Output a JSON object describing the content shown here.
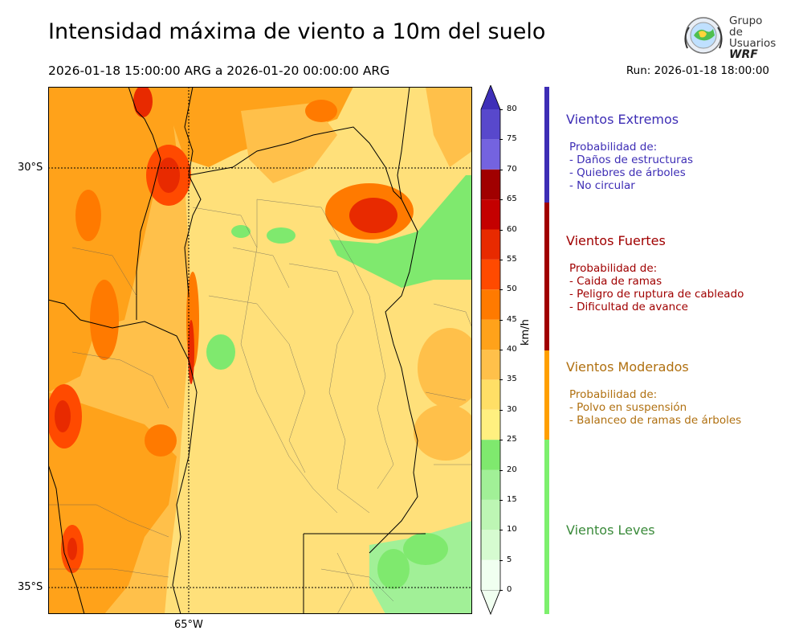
{
  "title": "Intensidad máxima de viento a 10m del suelo",
  "period": "2026-01-18 15:00:00 ARG  a  2026-01-20 00:00:00 ARG",
  "run": "Run: 2026-01-18 18:00:00",
  "logo": {
    "line1": "Grupo de",
    "line2": "Usuarios",
    "line3": "WRF",
    "icon": "globe-emblem-icon"
  },
  "map": {
    "lat_labels": [
      "30°S",
      "35°S"
    ],
    "lon_labels": [
      "65°W"
    ]
  },
  "colorbar": {
    "unit": "km/h",
    "ticks": [
      "0",
      "5",
      "10",
      "15",
      "20",
      "25",
      "30",
      "35",
      "40",
      "45",
      "50",
      "55",
      "60",
      "65",
      "70",
      "75",
      "80"
    ],
    "colors": [
      "#f0fff0",
      "#d6fbd0",
      "#bdf6b4",
      "#a1f097",
      "#7fe96e",
      "#fff080",
      "#ffdf66",
      "#ffc04a",
      "#ffa21a",
      "#ff7a00",
      "#ff4a00",
      "#e82a00",
      "#c40000",
      "#a00000",
      "#7463e0",
      "#5848cc",
      "#3e2fb8"
    ]
  },
  "categories": [
    {
      "title": "Vientos Extremos",
      "color": "#3d2db5",
      "subtitle": "Probabilidad de:",
      "items": [
        "- Daños de estructuras",
        "- Quiebres de árboles",
        "- No circular"
      ]
    },
    {
      "title": "Vientos Fuertes",
      "color": "#a00000",
      "subtitle": "Probabilidad de:",
      "items": [
        "- Caida de ramas",
        "- Peligro de ruptura de cableado",
        "- Dificultad de avance"
      ]
    },
    {
      "title": "Vientos Moderados",
      "color": "#ff9f00",
      "text_color": "#b07010",
      "subtitle": "Probabilidad de:",
      "items": [
        "- Polvo en suspensión",
        "- Balanceo de ramas de árboles"
      ]
    },
    {
      "title": "Vientos Leves",
      "color": "#7df06d",
      "text_color": "#3a8a3a"
    }
  ]
}
